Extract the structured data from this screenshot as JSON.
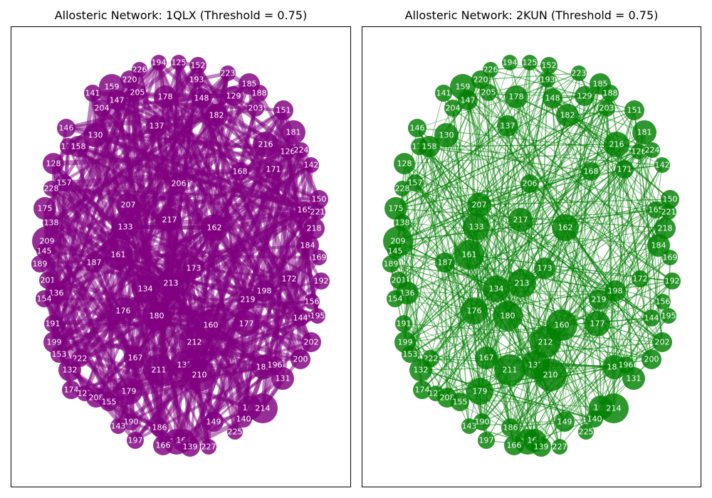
{
  "panels": [
    {
      "title": "Allosteric Network: 1QLX (Threshold = 0.75)",
      "node_color": "#800080",
      "edge_color": "#800080",
      "edge_style": "thick"
    },
    {
      "title": "Allosteric Network: 2KUN (Threshold = 0.75)",
      "node_color": "#008000",
      "edge_color": "#008000",
      "edge_style": "thin"
    }
  ],
  "nodes": [
    "194",
    "125",
    "152",
    "226",
    "223",
    "220",
    "193",
    "159",
    "185",
    "141",
    "205",
    "188",
    "147",
    "178",
    "148",
    "129",
    "204",
    "203",
    "151",
    "182",
    "137",
    "146",
    "130",
    "181",
    "170",
    "158",
    "216",
    "126",
    "224",
    "142",
    "128",
    "168",
    "171",
    "157",
    "206",
    "228",
    "150",
    "165",
    "175",
    "207",
    "221",
    "138",
    "217",
    "133",
    "162",
    "218",
    "209",
    "145",
    "184",
    "161",
    "169",
    "189",
    "187",
    "173",
    "201",
    "172",
    "192",
    "136",
    "134",
    "213",
    "198",
    "154",
    "219",
    "156",
    "176",
    "180",
    "195",
    "144",
    "160",
    "177",
    "191",
    "199",
    "212",
    "202",
    "153",
    "222",
    "167",
    "200",
    "135",
    "183",
    "196",
    "211",
    "132",
    "210",
    "131",
    "174",
    "127",
    "208",
    "179",
    "155",
    "163",
    "214",
    "140",
    "149",
    "190",
    "143",
    "186",
    "225",
    "197",
    "215",
    "164",
    "166",
    "139",
    "227"
  ]
}
